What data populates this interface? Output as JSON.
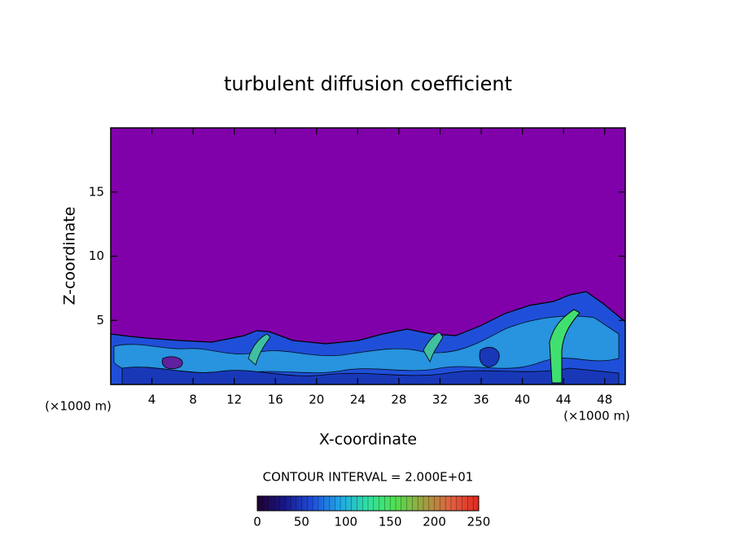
{
  "chart_data": {
    "type": "contour",
    "title": "turbulent diffusion coefficient",
    "xlabel": "X-coordinate",
    "ylabel": "Z-coordinate",
    "x_unit": "(×1000 m)",
    "y_unit": "(×1000 m)",
    "xlim": [
      0,
      50
    ],
    "xticks": [
      4,
      8,
      12,
      16,
      20,
      24,
      28,
      32,
      36,
      40,
      44,
      48
    ],
    "ylim": [
      0,
      20
    ],
    "yticks": [
      5,
      10,
      15
    ],
    "background_color": "#8000aa",
    "contour_interval_label": "CONTOUR INTERVAL = 2.000E+01",
    "colorbar": {
      "lim": [
        0,
        250
      ],
      "ticks": [
        0,
        50,
        100,
        150,
        200,
        250
      ],
      "colors": [
        "#200030",
        "#18188c",
        "#1f4fd8",
        "#20a8e8",
        "#30e0a0",
        "#50e050",
        "#a0a040",
        "#e06040",
        "#e02820"
      ]
    }
  }
}
